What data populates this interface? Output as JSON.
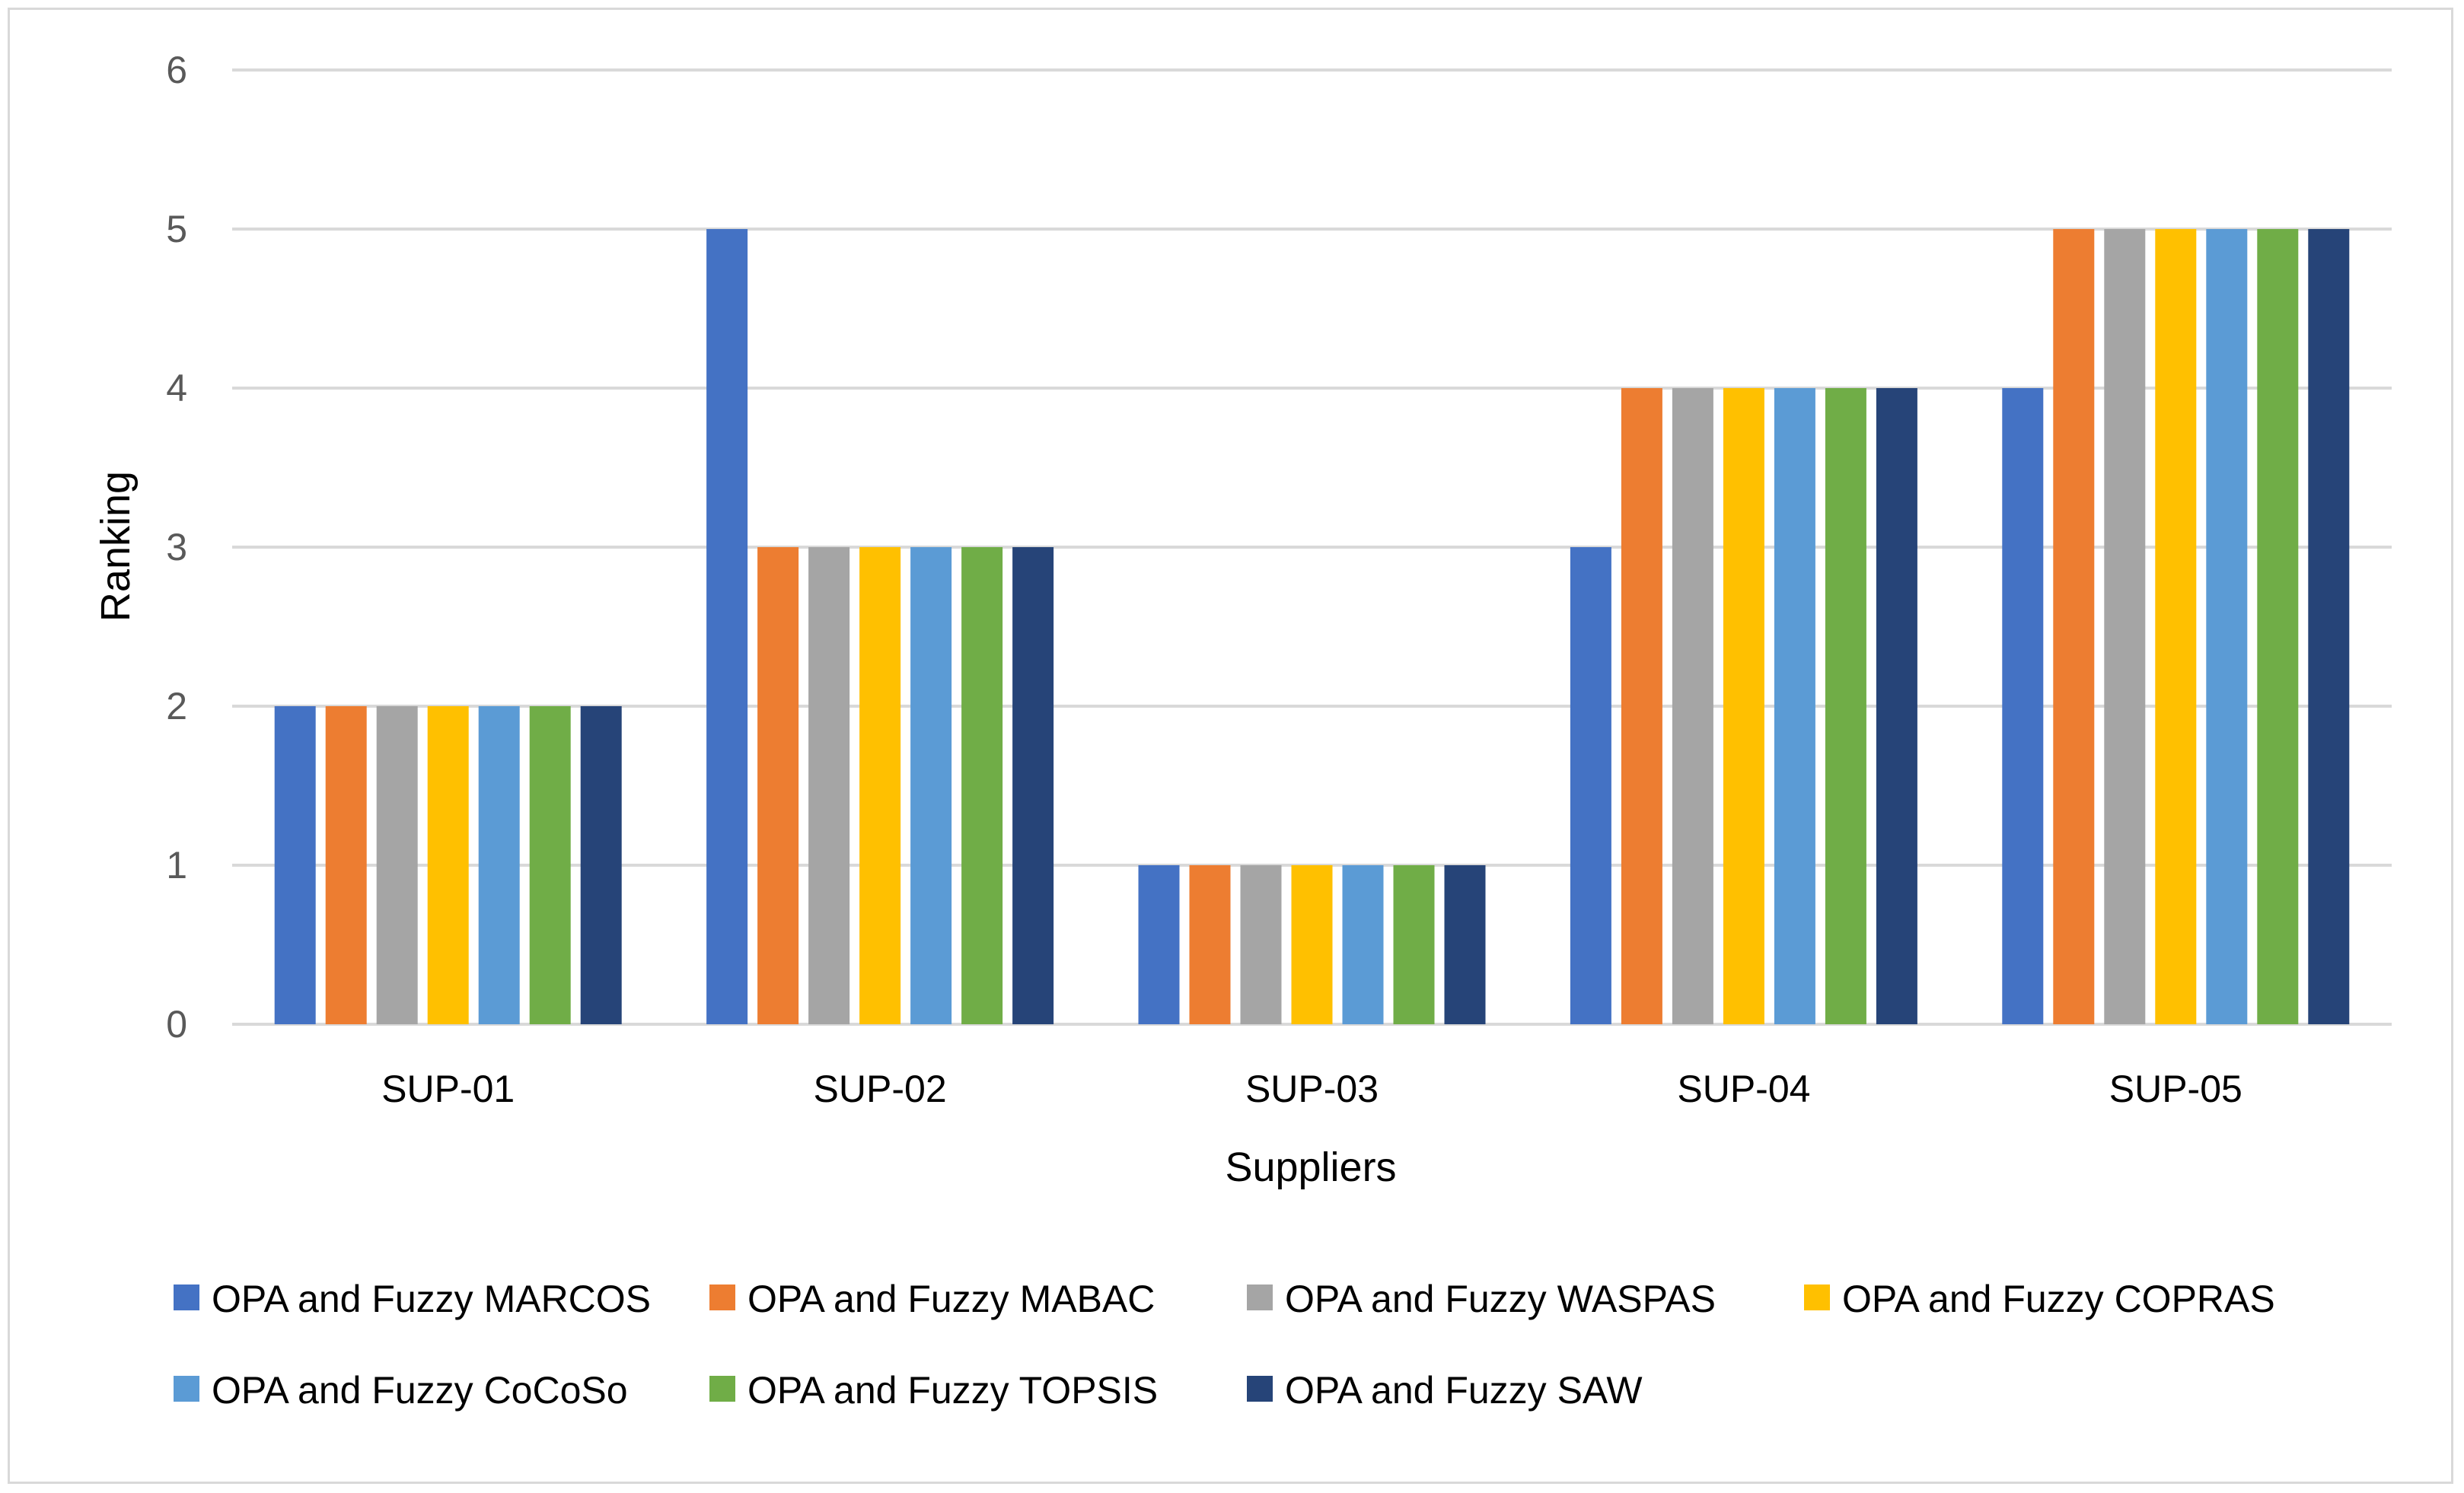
{
  "chart_data": {
    "type": "bar",
    "categories": [
      "SUP-01",
      "SUP-02",
      "SUP-03",
      "SUP-04",
      "SUP-05"
    ],
    "series": [
      {
        "name": "OPA and Fuzzy MARCOS",
        "color": "#4472c4",
        "values": [
          2,
          5,
          1,
          3,
          4
        ]
      },
      {
        "name": "OPA and Fuzzy MABAC",
        "color": "#ed7d31",
        "values": [
          2,
          3,
          1,
          4,
          5
        ]
      },
      {
        "name": "OPA and Fuzzy WASPAS",
        "color": "#a5a5a5",
        "values": [
          2,
          3,
          1,
          4,
          5
        ]
      },
      {
        "name": "OPA and Fuzzy COPRAS",
        "color": "#ffc000",
        "values": [
          2,
          3,
          1,
          4,
          5
        ]
      },
      {
        "name": "OPA and Fuzzy CoCoSo",
        "color": "#5b9bd5",
        "values": [
          2,
          3,
          1,
          4,
          5
        ]
      },
      {
        "name": "OPA and Fuzzy TOPSIS",
        "color": "#70ad47",
        "values": [
          2,
          3,
          1,
          4,
          5
        ]
      },
      {
        "name": "OPA and Fuzzy SAW",
        "color": "#264478",
        "values": [
          2,
          3,
          1,
          4,
          5
        ]
      }
    ],
    "xlabel": "Suppliers",
    "ylabel": "Ranking",
    "ylim": [
      0,
      6
    ],
    "yticks": [
      "0",
      "1",
      "2",
      "3",
      "4",
      "5",
      "6"
    ],
    "grid": true,
    "legend_position": "bottom",
    "gridline_color": "#d9d9d9"
  }
}
